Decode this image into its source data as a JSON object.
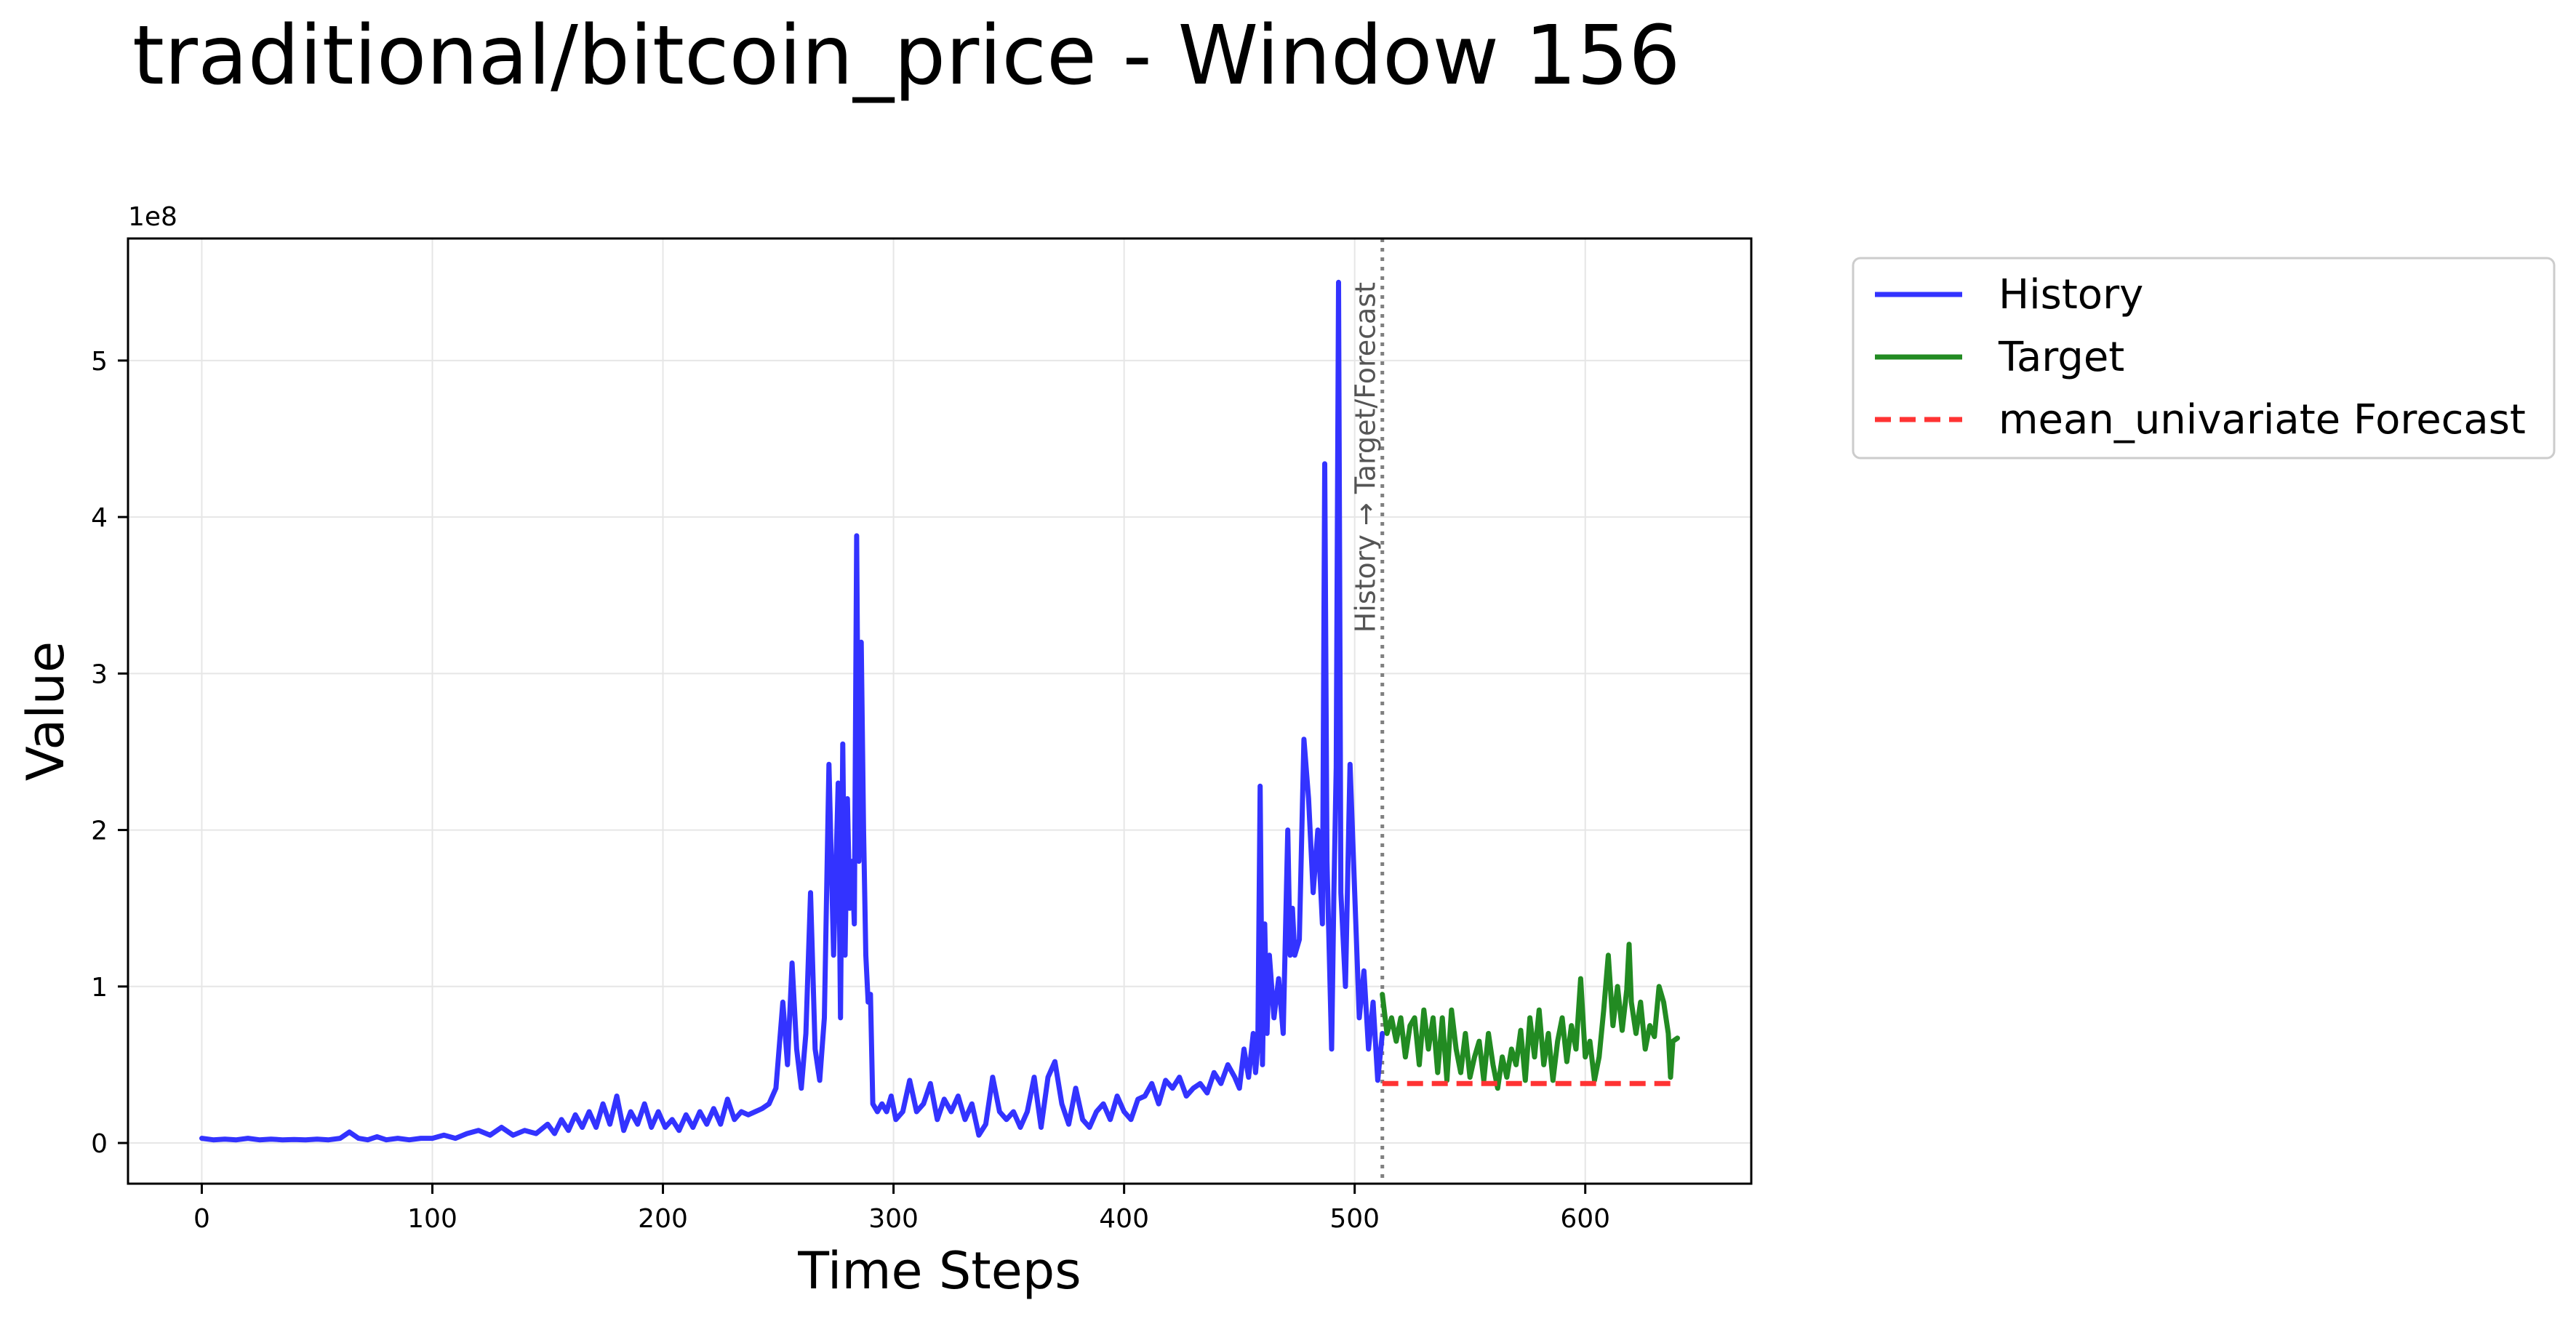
{
  "chart_data": {
    "type": "line",
    "title": "traditional/bitcoin_price - Window 156",
    "xlabel": "Time Steps",
    "ylabel": "Value",
    "y_offset_label": "1e8",
    "xlim": [
      -32,
      672
    ],
    "ylim": [
      -0.26,
      5.78
    ],
    "x_ticks": [
      0,
      100,
      200,
      300,
      400,
      500,
      600
    ],
    "y_ticks": [
      0,
      1,
      2,
      3,
      4,
      5
    ],
    "grid": true,
    "legend_position": "outside-upper-right",
    "divider": {
      "x": 512,
      "label": "History → Target/Forecast",
      "color": "#808080"
    },
    "series": [
      {
        "name": "History",
        "color": "#3333ff",
        "style": "solid",
        "points": [
          [
            0,
            0.03
          ],
          [
            5,
            0.02
          ],
          [
            10,
            0.025
          ],
          [
            15,
            0.02
          ],
          [
            20,
            0.03
          ],
          [
            25,
            0.02
          ],
          [
            30,
            0.025
          ],
          [
            35,
            0.02
          ],
          [
            40,
            0.022
          ],
          [
            45,
            0.02
          ],
          [
            50,
            0.025
          ],
          [
            55,
            0.02
          ],
          [
            60,
            0.03
          ],
          [
            64,
            0.07
          ],
          [
            68,
            0.03
          ],
          [
            72,
            0.02
          ],
          [
            76,
            0.04
          ],
          [
            80,
            0.02
          ],
          [
            85,
            0.03
          ],
          [
            90,
            0.02
          ],
          [
            95,
            0.03
          ],
          [
            100,
            0.03
          ],
          [
            105,
            0.05
          ],
          [
            110,
            0.03
          ],
          [
            115,
            0.06
          ],
          [
            120,
            0.08
          ],
          [
            125,
            0.05
          ],
          [
            130,
            0.1
          ],
          [
            135,
            0.05
          ],
          [
            140,
            0.08
          ],
          [
            145,
            0.06
          ],
          [
            150,
            0.12
          ],
          [
            153,
            0.06
          ],
          [
            156,
            0.15
          ],
          [
            159,
            0.08
          ],
          [
            162,
            0.18
          ],
          [
            165,
            0.1
          ],
          [
            168,
            0.2
          ],
          [
            171,
            0.1
          ],
          [
            174,
            0.25
          ],
          [
            177,
            0.12
          ],
          [
            180,
            0.3
          ],
          [
            183,
            0.08
          ],
          [
            186,
            0.2
          ],
          [
            189,
            0.12
          ],
          [
            192,
            0.25
          ],
          [
            195,
            0.1
          ],
          [
            198,
            0.2
          ],
          [
            201,
            0.1
          ],
          [
            204,
            0.15
          ],
          [
            207,
            0.08
          ],
          [
            210,
            0.18
          ],
          [
            213,
            0.1
          ],
          [
            216,
            0.2
          ],
          [
            219,
            0.12
          ],
          [
            222,
            0.22
          ],
          [
            225,
            0.12
          ],
          [
            228,
            0.28
          ],
          [
            231,
            0.15
          ],
          [
            234,
            0.2
          ],
          [
            237,
            0.18
          ],
          [
            240,
            0.2
          ],
          [
            243,
            0.22
          ],
          [
            246,
            0.25
          ],
          [
            249,
            0.35
          ],
          [
            252,
            0.9
          ],
          [
            254,
            0.5
          ],
          [
            256,
            1.15
          ],
          [
            258,
            0.6
          ],
          [
            260,
            0.35
          ],
          [
            262,
            0.7
          ],
          [
            264,
            1.6
          ],
          [
            266,
            0.6
          ],
          [
            268,
            0.4
          ],
          [
            270,
            0.8
          ],
          [
            272,
            2.42
          ],
          [
            274,
            1.2
          ],
          [
            276,
            2.3
          ],
          [
            277,
            0.8
          ],
          [
            278,
            2.55
          ],
          [
            279,
            1.2
          ],
          [
            280,
            2.2
          ],
          [
            281,
            1.5
          ],
          [
            282,
            1.8
          ],
          [
            283,
            1.4
          ],
          [
            284,
            3.88
          ],
          [
            285,
            1.8
          ],
          [
            286,
            3.2
          ],
          [
            287,
            2.0
          ],
          [
            288,
            1.2
          ],
          [
            289,
            0.9
          ],
          [
            290,
            0.95
          ],
          [
            291,
            0.25
          ],
          [
            293,
            0.2
          ],
          [
            295,
            0.25
          ],
          [
            297,
            0.2
          ],
          [
            299,
            0.3
          ],
          [
            301,
            0.15
          ],
          [
            304,
            0.2
          ],
          [
            307,
            0.4
          ],
          [
            310,
            0.2
          ],
          [
            313,
            0.25
          ],
          [
            316,
            0.38
          ],
          [
            319,
            0.15
          ],
          [
            322,
            0.28
          ],
          [
            325,
            0.2
          ],
          [
            328,
            0.3
          ],
          [
            331,
            0.15
          ],
          [
            334,
            0.25
          ],
          [
            337,
            0.05
          ],
          [
            340,
            0.12
          ],
          [
            343,
            0.42
          ],
          [
            346,
            0.2
          ],
          [
            349,
            0.15
          ],
          [
            352,
            0.2
          ],
          [
            355,
            0.1
          ],
          [
            358,
            0.2
          ],
          [
            361,
            0.42
          ],
          [
            364,
            0.1
          ],
          [
            367,
            0.42
          ],
          [
            370,
            0.52
          ],
          [
            373,
            0.25
          ],
          [
            376,
            0.12
          ],
          [
            379,
            0.35
          ],
          [
            382,
            0.15
          ],
          [
            385,
            0.1
          ],
          [
            388,
            0.2
          ],
          [
            391,
            0.25
          ],
          [
            394,
            0.15
          ],
          [
            397,
            0.3
          ],
          [
            400,
            0.2
          ],
          [
            403,
            0.15
          ],
          [
            406,
            0.28
          ],
          [
            409,
            0.3
          ],
          [
            412,
            0.38
          ],
          [
            415,
            0.25
          ],
          [
            418,
            0.4
          ],
          [
            421,
            0.35
          ],
          [
            424,
            0.42
          ],
          [
            427,
            0.3
          ],
          [
            430,
            0.35
          ],
          [
            433,
            0.38
          ],
          [
            436,
            0.32
          ],
          [
            439,
            0.45
          ],
          [
            442,
            0.38
          ],
          [
            445,
            0.5
          ],
          [
            448,
            0.42
          ],
          [
            450,
            0.35
          ],
          [
            452,
            0.6
          ],
          [
            454,
            0.42
          ],
          [
            456,
            0.7
          ],
          [
            457,
            0.45
          ],
          [
            458,
            0.62
          ],
          [
            459,
            2.28
          ],
          [
            460,
            0.5
          ],
          [
            461,
            1.4
          ],
          [
            462,
            0.7
          ],
          [
            463,
            1.2
          ],
          [
            465,
            0.8
          ],
          [
            467,
            1.05
          ],
          [
            469,
            0.7
          ],
          [
            471,
            2.0
          ],
          [
            472,
            1.2
          ],
          [
            473,
            1.5
          ],
          [
            474,
            1.2
          ],
          [
            476,
            1.3
          ],
          [
            478,
            2.58
          ],
          [
            480,
            2.2
          ],
          [
            482,
            1.6
          ],
          [
            484,
            2.0
          ],
          [
            486,
            1.4
          ],
          [
            487,
            4.34
          ],
          [
            488,
            1.8
          ],
          [
            490,
            0.6
          ],
          [
            491,
            1.6
          ],
          [
            492,
            2.4
          ],
          [
            493,
            5.5
          ],
          [
            494,
            1.6
          ],
          [
            496,
            1.0
          ],
          [
            498,
            2.42
          ],
          [
            500,
            1.6
          ],
          [
            502,
            0.8
          ],
          [
            504,
            1.1
          ],
          [
            506,
            0.6
          ],
          [
            508,
            0.9
          ],
          [
            510,
            0.4
          ],
          [
            512,
            0.7
          ]
        ]
      },
      {
        "name": "Target",
        "color": "#228b22",
        "style": "solid",
        "points": [
          [
            512,
            0.95
          ],
          [
            514,
            0.7
          ],
          [
            516,
            0.8
          ],
          [
            518,
            0.65
          ],
          [
            520,
            0.8
          ],
          [
            522,
            0.55
          ],
          [
            524,
            0.75
          ],
          [
            526,
            0.8
          ],
          [
            528,
            0.5
          ],
          [
            530,
            0.85
          ],
          [
            532,
            0.6
          ],
          [
            534,
            0.8
          ],
          [
            536,
            0.45
          ],
          [
            538,
            0.8
          ],
          [
            540,
            0.4
          ],
          [
            542,
            0.85
          ],
          [
            544,
            0.6
          ],
          [
            546,
            0.45
          ],
          [
            548,
            0.7
          ],
          [
            550,
            0.42
          ],
          [
            552,
            0.55
          ],
          [
            554,
            0.65
          ],
          [
            556,
            0.4
          ],
          [
            558,
            0.7
          ],
          [
            560,
            0.5
          ],
          [
            562,
            0.35
          ],
          [
            564,
            0.55
          ],
          [
            566,
            0.42
          ],
          [
            568,
            0.6
          ],
          [
            570,
            0.5
          ],
          [
            572,
            0.72
          ],
          [
            574,
            0.4
          ],
          [
            576,
            0.8
          ],
          [
            578,
            0.55
          ],
          [
            580,
            0.85
          ],
          [
            582,
            0.5
          ],
          [
            584,
            0.7
          ],
          [
            586,
            0.4
          ],
          [
            588,
            0.65
          ],
          [
            590,
            0.8
          ],
          [
            592,
            0.52
          ],
          [
            594,
            0.75
          ],
          [
            596,
            0.6
          ],
          [
            598,
            1.05
          ],
          [
            600,
            0.55
          ],
          [
            602,
            0.65
          ],
          [
            604,
            0.4
          ],
          [
            606,
            0.55
          ],
          [
            608,
            0.85
          ],
          [
            610,
            1.2
          ],
          [
            612,
            0.75
          ],
          [
            614,
            1.0
          ],
          [
            616,
            0.72
          ],
          [
            618,
            0.98
          ],
          [
            619,
            1.27
          ],
          [
            620,
            0.9
          ],
          [
            622,
            0.7
          ],
          [
            624,
            0.9
          ],
          [
            626,
            0.6
          ],
          [
            628,
            0.75
          ],
          [
            630,
            0.68
          ],
          [
            632,
            1.0
          ],
          [
            634,
            0.9
          ],
          [
            636,
            0.7
          ],
          [
            637,
            0.42
          ],
          [
            638,
            0.65
          ],
          [
            640,
            0.67
          ]
        ]
      },
      {
        "name": "mean_univariate Forecast",
        "color": "#ff3333",
        "style": "dashed",
        "points": [
          [
            512,
            0.38
          ],
          [
            640,
            0.38
          ]
        ]
      }
    ]
  }
}
